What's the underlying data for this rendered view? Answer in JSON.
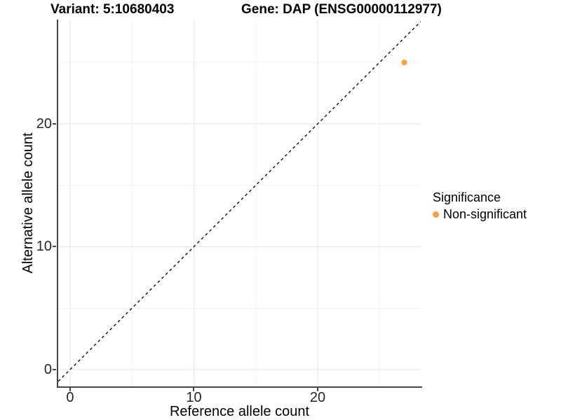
{
  "titles": {
    "variant": "Variant: 5:10680403",
    "gene": "Gene: DAP (ENSG00000112977)"
  },
  "legend": {
    "title": "Significance",
    "items": [
      {
        "label": "Non-significant",
        "color": "#F9A22D"
      }
    ]
  },
  "chart_data": {
    "type": "scatter",
    "title_left": "Variant: 5:10680403",
    "title_right": "Gene: DAP (ENSG00000112977)",
    "xlabel": "Reference allele count",
    "ylabel": "Alternative allele count",
    "xlim": [
      -0.96,
      28.33
    ],
    "ylim": [
      -1.37,
      28.49
    ],
    "x_major_ticks": [
      0,
      10,
      20
    ],
    "x_minor_ticks": [
      5,
      15,
      25
    ],
    "y_major_ticks": [
      0,
      10,
      20
    ],
    "y_minor_ticks": [
      5,
      15,
      25
    ],
    "grid": true,
    "legend_position": "right",
    "points": [
      {
        "x": 27,
        "y": 25,
        "series": "Non-significant",
        "color": "#F9A22D",
        "radius": 4
      }
    ],
    "reference_line": {
      "type": "identity y = x",
      "style": "dashed",
      "color": "#000000",
      "dash": [
        4,
        4
      ]
    },
    "colors": {
      "axis_line": "#454545",
      "major_grid": "#E5E5E5",
      "minor_grid": "#F2F2F2"
    }
  }
}
